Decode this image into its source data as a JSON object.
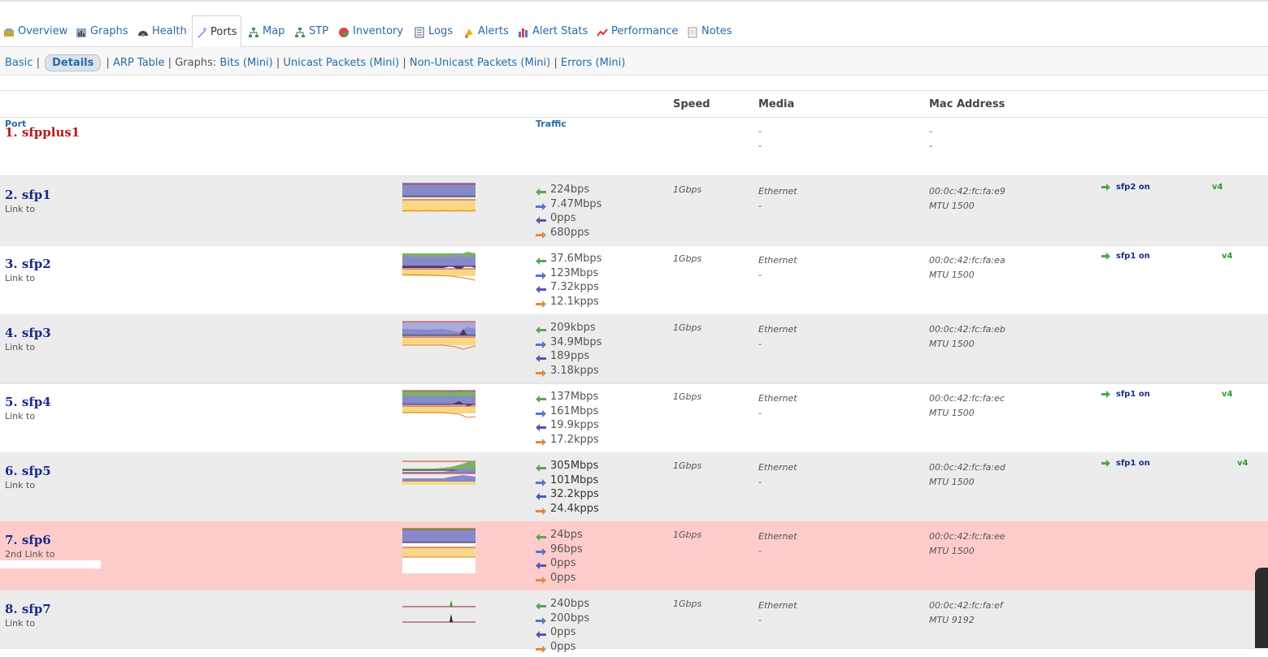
{
  "tabs": [
    {
      "label": "Overview",
      "icon": "overview-icon"
    },
    {
      "label": "Graphs",
      "icon": "graphs-icon"
    },
    {
      "label": "Health",
      "icon": "health-icon"
    },
    {
      "label": "Ports",
      "icon": "ports-icon",
      "active": true
    },
    {
      "label": "Map",
      "icon": "map-icon"
    },
    {
      "label": "STP",
      "icon": "stp-icon"
    },
    {
      "label": "Inventory",
      "icon": "inventory-icon"
    },
    {
      "label": "Logs",
      "icon": "logs-icon"
    },
    {
      "label": "Alerts",
      "icon": "alerts-icon"
    },
    {
      "label": "Alert Stats",
      "icon": "alert-stats-icon"
    },
    {
      "label": "Performance",
      "icon": "performance-icon"
    },
    {
      "label": "Notes",
      "icon": "notes-icon"
    }
  ],
  "subnav": {
    "basic": "Basic",
    "details": "Details",
    "arp": "ARP Table",
    "graphs_label": "Graphs:",
    "bits": "Bits",
    "unicast": "Unicast Packets",
    "nonunicast": "Non-Unicast Packets",
    "errors": "Errors",
    "mini": "(Mini)"
  },
  "headers": {
    "port": "Port",
    "traffic": "Traffic",
    "speed": "Speed",
    "media": "Media",
    "mac": "Mac Address"
  },
  "ports": [
    {
      "name": "1. sfpplus1",
      "media": "-",
      "media2": "-",
      "mac": "-",
      "mac2": "-"
    },
    {
      "name": "2. sfp1",
      "link": "Link to",
      "traffic": [
        "224bps",
        "7.47Mbps",
        "0pps",
        "680pps"
      ],
      "speed": "1Gbps",
      "media": "Ethernet",
      "media2": "-",
      "mac": "00:0c:42:fc:fa:e9",
      "mtu": "MTU 1500",
      "neighbor": "sfp2",
      "on": "on",
      "v4": "v4"
    },
    {
      "name": "3. sfp2",
      "link": "Link to",
      "traffic": [
        "37.6Mbps",
        "123Mbps",
        "7.32kpps",
        "12.1kpps"
      ],
      "speed": "1Gbps",
      "media": "Ethernet",
      "media2": "-",
      "mac": "00:0c:42:fc:fa:ea",
      "mtu": "MTU 1500",
      "neighbor": "sfp1",
      "on": "on",
      "v4": "v4"
    },
    {
      "name": "4. sfp3",
      "link": "Link to",
      "traffic": [
        "209kbps",
        "34.9Mbps",
        "189pps",
        "3.18kpps"
      ],
      "speed": "1Gbps",
      "media": "Ethernet",
      "media2": "-",
      "mac": "00:0c:42:fc:fa:eb",
      "mtu": "MTU 1500"
    },
    {
      "name": "5. sfp4",
      "link": "Link to",
      "traffic": [
        "137Mbps",
        "161Mbps",
        "19.9kpps",
        "17.2kpps"
      ],
      "speed": "1Gbps",
      "media": "Ethernet",
      "media2": "-",
      "mac": "00:0c:42:fc:fa:ec",
      "mtu": "MTU 1500",
      "neighbor": "sfp1",
      "on": "on",
      "v4": "v4"
    },
    {
      "name": "6. sfp5",
      "link": "Link to",
      "traffic": [
        "305Mbps",
        "101Mbps",
        "32.2kpps",
        "24.4kpps"
      ],
      "speed": "1Gbps",
      "media": "Ethernet",
      "media2": "-",
      "mac": "00:0c:42:fc:fa:ed",
      "mtu": "MTU 1500",
      "neighbor": "sfp1",
      "on": "on",
      "v4": "v4"
    },
    {
      "name": "7. sfp6",
      "link": "2nd Link to",
      "traffic": [
        "24bps",
        "96bps",
        "0pps",
        "0pps"
      ],
      "speed": "1Gbps",
      "media": "Ethernet",
      "media2": "-",
      "mac": "00:0c:42:fc:fa:ee",
      "mtu": "MTU 1500"
    },
    {
      "name": "8. sfp7",
      "link": "Link to",
      "traffic": [
        "240bps",
        "200bps",
        "0pps",
        "0pps"
      ],
      "speed": "1Gbps",
      "media": "Ethernet",
      "media2": "-",
      "mac": "00:0c:42:fc:fa:ef",
      "mtu": "MTU 9192"
    }
  ],
  "colors": {
    "link": "#2a6aa8",
    "portname": "#1a2a8a",
    "alert_row": "#ffcccc",
    "alt_row": "#ececec"
  }
}
